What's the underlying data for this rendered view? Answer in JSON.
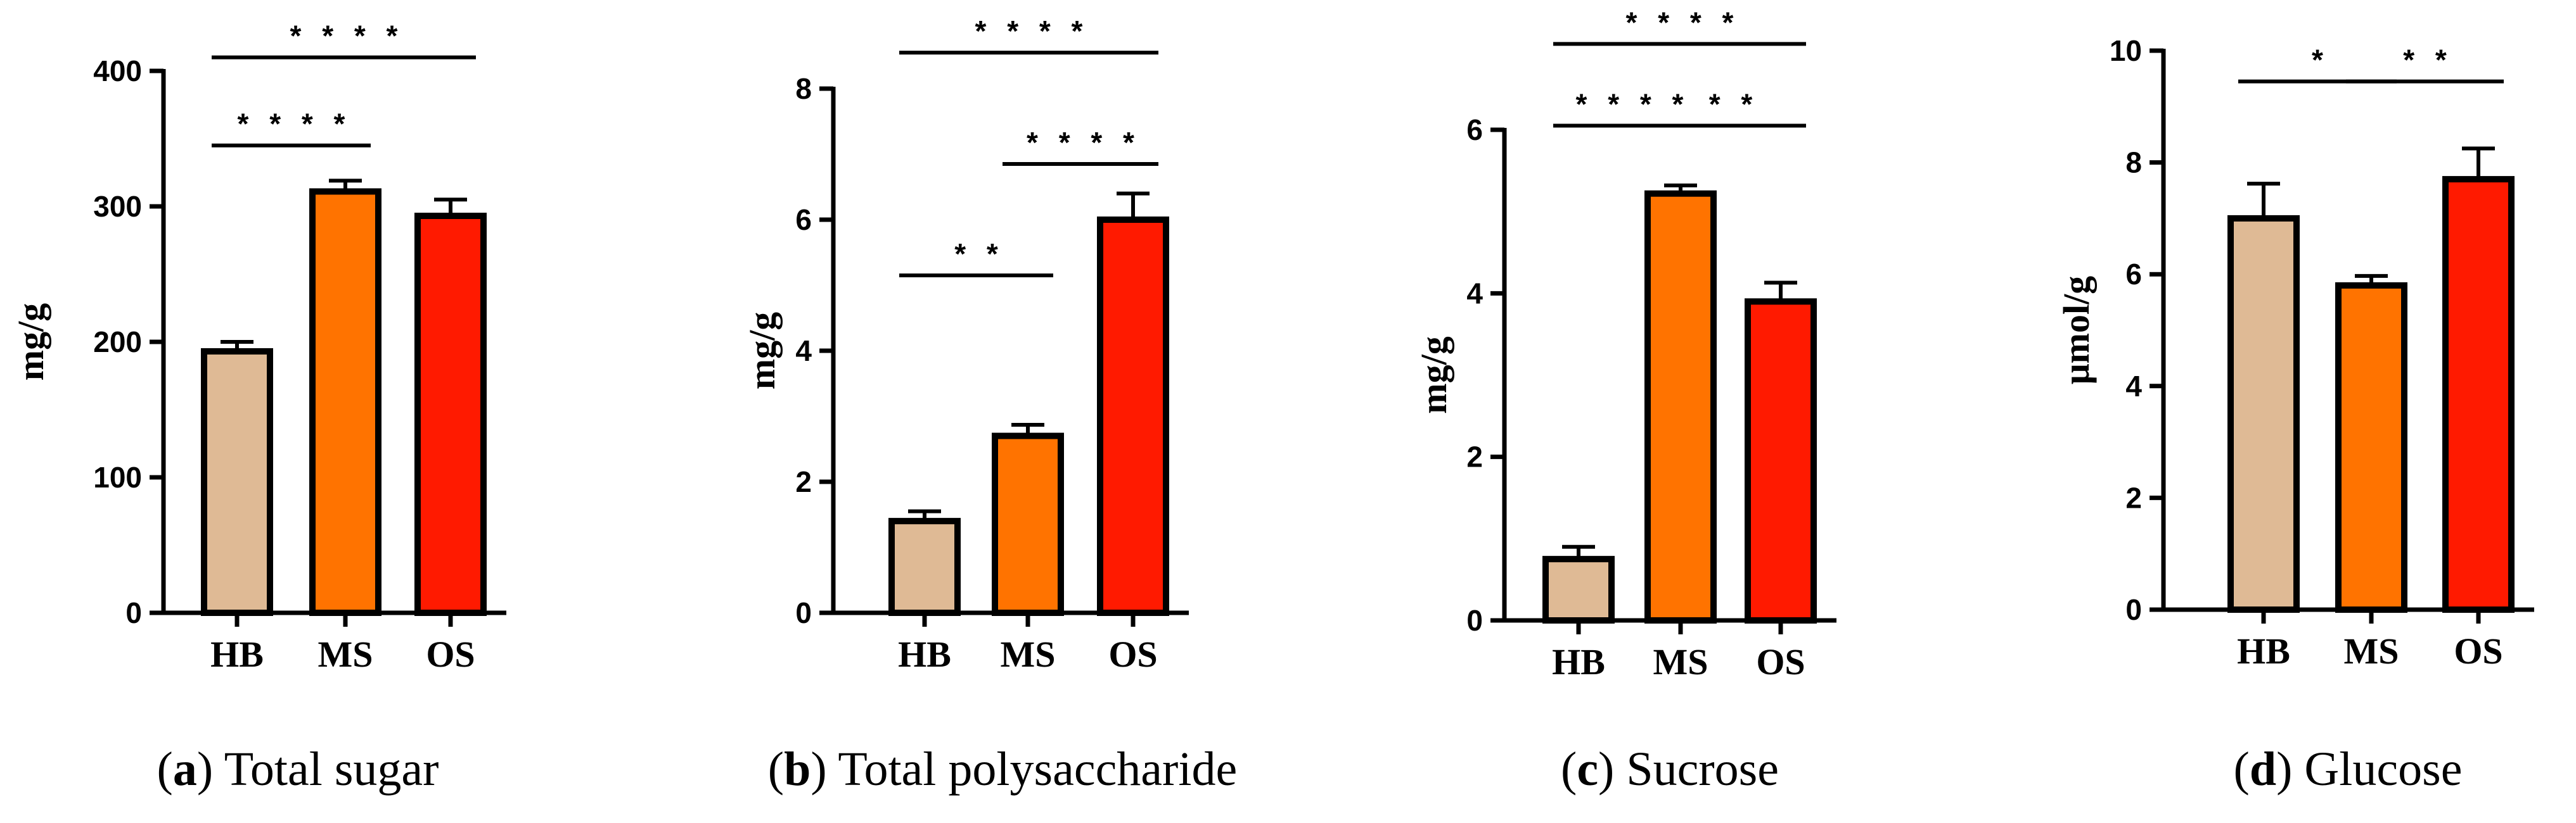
{
  "chart_data": [
    {
      "type": "bar",
      "caption_letter": "a",
      "caption_title": "Total sugar",
      "ylabel": "mg/g",
      "categories": [
        "HB",
        "MS",
        "OS"
      ],
      "values": [
        193,
        311,
        293
      ],
      "errors": [
        7,
        8,
        12
      ],
      "colors": [
        "#dfba95",
        "#ff7300",
        "#ff1a00"
      ],
      "ylim": [
        0,
        400
      ],
      "yticks": [
        0,
        100,
        200,
        300,
        400
      ],
      "significance": [
        {
          "from": 0,
          "to": 1,
          "y": 345,
          "label": "****"
        },
        {
          "from": 0,
          "to": 2,
          "y": 410,
          "label": "****"
        }
      ]
    },
    {
      "type": "bar",
      "caption_letter": "b",
      "caption_title": "Total polysaccharide",
      "ylabel": "mg/g",
      "categories": [
        "HB",
        "MS",
        "OS"
      ],
      "values": [
        1.4,
        2.7,
        6.0
      ],
      "errors": [
        0.15,
        0.17,
        0.4
      ],
      "colors": [
        "#dfba95",
        "#ff7300",
        "#ff1a00"
      ],
      "ylim": [
        0,
        8
      ],
      "yticks": [
        0,
        2,
        4,
        6,
        8
      ],
      "significance": [
        {
          "from": 0,
          "to": 1,
          "y": 5.15,
          "label": "**"
        },
        {
          "from": 1,
          "to": 2,
          "y": 6.85,
          "label": "****"
        },
        {
          "from": 0,
          "to": 2,
          "y": 8.55,
          "label": "****"
        }
      ]
    },
    {
      "type": "bar",
      "caption_letter": "c",
      "caption_title": "Sucrose",
      "ylabel": "mg/g",
      "categories": [
        "HB",
        "MS",
        "OS"
      ],
      "values": [
        0.75,
        5.22,
        3.9
      ],
      "errors": [
        0.15,
        0.1,
        0.23
      ],
      "colors": [
        "#dfba95",
        "#ff7300",
        "#ff1a00"
      ],
      "ylim": [
        0,
        6
      ],
      "yticks": [
        0,
        2,
        4,
        6
      ],
      "significance": [
        {
          "from": 0,
          "to": 1,
          "y": 6.05,
          "label": "****"
        },
        {
          "from": 1,
          "to": 2,
          "y": 6.05,
          "label": "**"
        },
        {
          "from": 0,
          "to": 2,
          "y": 7.05,
          "label": "****"
        }
      ]
    },
    {
      "type": "bar",
      "caption_letter": "d",
      "caption_title": "Glucose",
      "ylabel": "μmol/g",
      "categories": [
        "HB",
        "MS",
        "OS"
      ],
      "values": [
        7.0,
        5.8,
        7.7
      ],
      "errors": [
        0.62,
        0.17,
        0.55
      ],
      "colors": [
        "#dfba95",
        "#ff7300",
        "#ff1a00"
      ],
      "ylim": [
        0,
        10
      ],
      "yticks": [
        0,
        2,
        4,
        6,
        8,
        10
      ],
      "significance": [
        {
          "from": 0,
          "to": 1,
          "y": 9.45,
          "label": "*"
        },
        {
          "from": 1,
          "to": 2,
          "y": 9.45,
          "label": "**"
        }
      ]
    }
  ]
}
